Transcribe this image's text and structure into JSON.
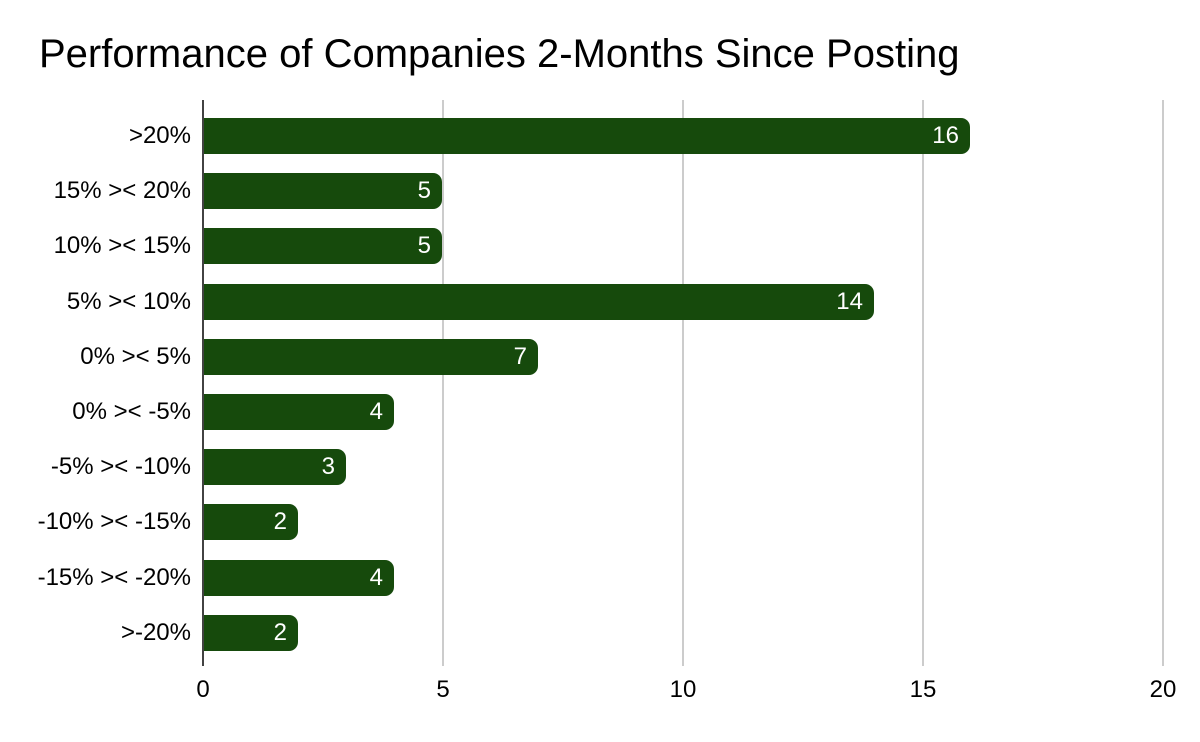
{
  "chart_data": {
    "type": "bar",
    "orientation": "horizontal",
    "title": "Performance of Companies 2-Months Since Posting",
    "categories": [
      ">20%",
      "15% >< 20%",
      "10% >< 15%",
      "5% >< 10%",
      "0% >< 5%",
      "0% >< -5%",
      "-5% >< -10%",
      "-10% >< -15%",
      "-15% >< -20%",
      ">-20%"
    ],
    "values": [
      16,
      5,
      5,
      14,
      7,
      4,
      3,
      2,
      4,
      2
    ],
    "x_ticks": [
      0,
      5,
      10,
      15,
      20
    ],
    "xlim": [
      0,
      20
    ],
    "xlabel": "",
    "ylabel": "",
    "grid": true,
    "legend": "none",
    "colors": {
      "bar": "#164a0c",
      "bar_label": "#ffffff",
      "gridline": "#cccccc",
      "axis_line": "#424242",
      "text": "#000000",
      "background": "#ffffff"
    }
  }
}
